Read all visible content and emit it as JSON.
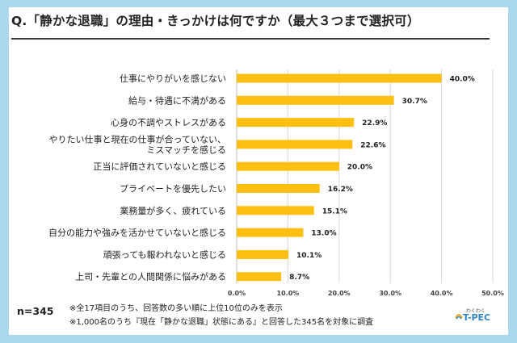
{
  "title": "Q.「静かな退職」の理由・きっかけは何ですか（最大３つまで選択可）",
  "sample": "n=345",
  "notes": [
    "※全17項目のうち、回答数の多い順に上位10位のみを表示",
    "※1,000名のうち『現在「静かな退職」状態にある』と回答した345名を対象に調査"
  ],
  "logo": {
    "small": "わくわく",
    "main": "T-PEC"
  },
  "colors": {
    "bar": "#fcbf12",
    "background": "#a9d8ef",
    "grid": "#d8d8d8"
  },
  "chart_data": {
    "type": "bar",
    "orientation": "horizontal",
    "categories": [
      [
        "仕事にやりがいを感じない"
      ],
      [
        "給与・待遇に不満がある"
      ],
      [
        "心身の不調やストレスがある"
      ],
      [
        "やりたい仕事と現在の仕事が合っていない、",
        "ミスマッチを感じる"
      ],
      [
        "正当に評価されていないと感じる"
      ],
      [
        "プライベートを優先したい"
      ],
      [
        "業務量が多く、疲れている"
      ],
      [
        "自分の能力や強みを活かせていないと感じる"
      ],
      [
        "頑張っても報われないと感じる"
      ],
      [
        "上司・先輩との人間関係に悩みがある"
      ]
    ],
    "values": [
      40.0,
      30.7,
      22.9,
      22.6,
      20.0,
      16.2,
      15.1,
      13.0,
      10.1,
      8.7
    ],
    "value_labels": [
      "40.0%",
      "30.7%",
      "22.9%",
      "22.6%",
      "20.0%",
      "16.2%",
      "15.1%",
      "13.0%",
      "10.1%",
      "8.7%"
    ],
    "xlim": [
      0,
      50
    ],
    "xticks": [
      "0.0%",
      "10.0%",
      "20.0%",
      "30.0%",
      "40.0%",
      "50.0%"
    ],
    "grid": true,
    "legend": "none"
  }
}
